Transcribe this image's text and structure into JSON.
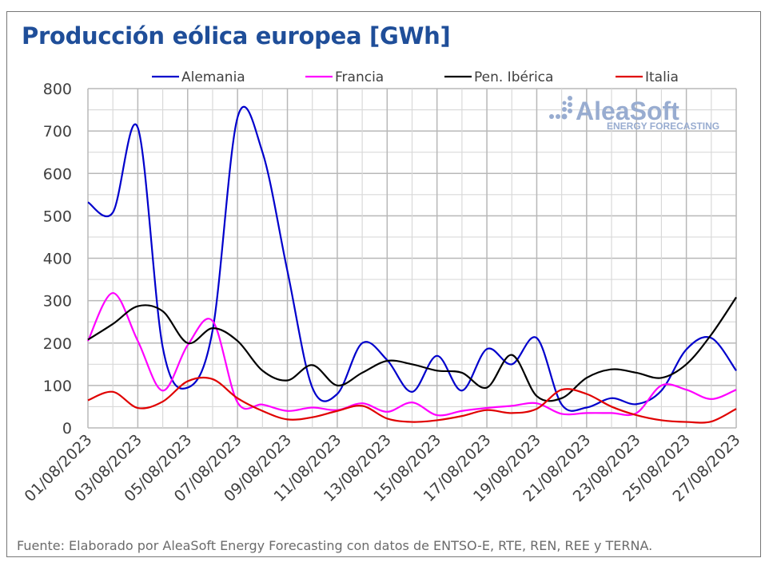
{
  "chart_data": {
    "type": "line",
    "title": "Producción eólica europea [GWh]",
    "xlabel": "",
    "ylabel": "",
    "ylim": [
      0,
      800
    ],
    "yticks": [
      0,
      100,
      200,
      300,
      400,
      500,
      600,
      700,
      800
    ],
    "grid": true,
    "legend_position": "top",
    "x": [
      "01/08/2023",
      "02/08/2023",
      "03/08/2023",
      "04/08/2023",
      "05/08/2023",
      "06/08/2023",
      "07/08/2023",
      "08/08/2023",
      "09/08/2023",
      "10/08/2023",
      "11/08/2023",
      "12/08/2023",
      "13/08/2023",
      "14/08/2023",
      "15/08/2023",
      "16/08/2023",
      "17/08/2023",
      "18/08/2023",
      "19/08/2023",
      "20/08/2023",
      "21/08/2023",
      "22/08/2023",
      "23/08/2023",
      "24/08/2023",
      "25/08/2023",
      "26/08/2023",
      "27/08/2023"
    ],
    "xtick_labels": [
      "01/08/2023",
      "03/08/2023",
      "05/08/2023",
      "07/08/2023",
      "09/08/2023",
      "11/08/2023",
      "13/08/2023",
      "15/08/2023",
      "17/08/2023",
      "19/08/2023",
      "21/08/2023",
      "23/08/2023",
      "25/08/2023",
      "27/08/2023"
    ],
    "series": [
      {
        "name": "Alemania",
        "color": "#0000cc",
        "values": [
          532,
          508,
          708,
          190,
          95,
          230,
          732,
          650,
          370,
          95,
          80,
          200,
          160,
          85,
          170,
          88,
          186,
          150,
          212,
          55,
          48,
          70,
          56,
          88,
          185,
          212,
          135
        ]
      },
      {
        "name": "Francia",
        "color": "#ff00ff",
        "values": [
          205,
          318,
          205,
          88,
          195,
          252,
          60,
          55,
          40,
          48,
          42,
          58,
          38,
          60,
          30,
          40,
          47,
          52,
          58,
          33,
          35,
          35,
          35,
          100,
          90,
          68,
          90
        ]
      },
      {
        "name": "Pen. Ibérica",
        "color": "#000000",
        "values": [
          208,
          245,
          287,
          275,
          200,
          235,
          205,
          135,
          112,
          148,
          100,
          130,
          158,
          150,
          135,
          130,
          95,
          172,
          75,
          70,
          118,
          138,
          130,
          118,
          150,
          220,
          308
        ]
      },
      {
        "name": "Italia",
        "color": "#e00000",
        "values": [
          65,
          85,
          47,
          62,
          110,
          115,
          70,
          40,
          20,
          25,
          40,
          52,
          22,
          14,
          18,
          28,
          42,
          35,
          45,
          90,
          80,
          50,
          30,
          18,
          14,
          15,
          45
        ]
      }
    ]
  },
  "watermark": {
    "brand": "AleaSoft",
    "tagline": "ENERGY FORECASTING"
  },
  "source": "Fuente: Elaborado por AleaSoft Energy Forecasting con datos de ENTSO-E, RTE, REN, REE y TERNA."
}
